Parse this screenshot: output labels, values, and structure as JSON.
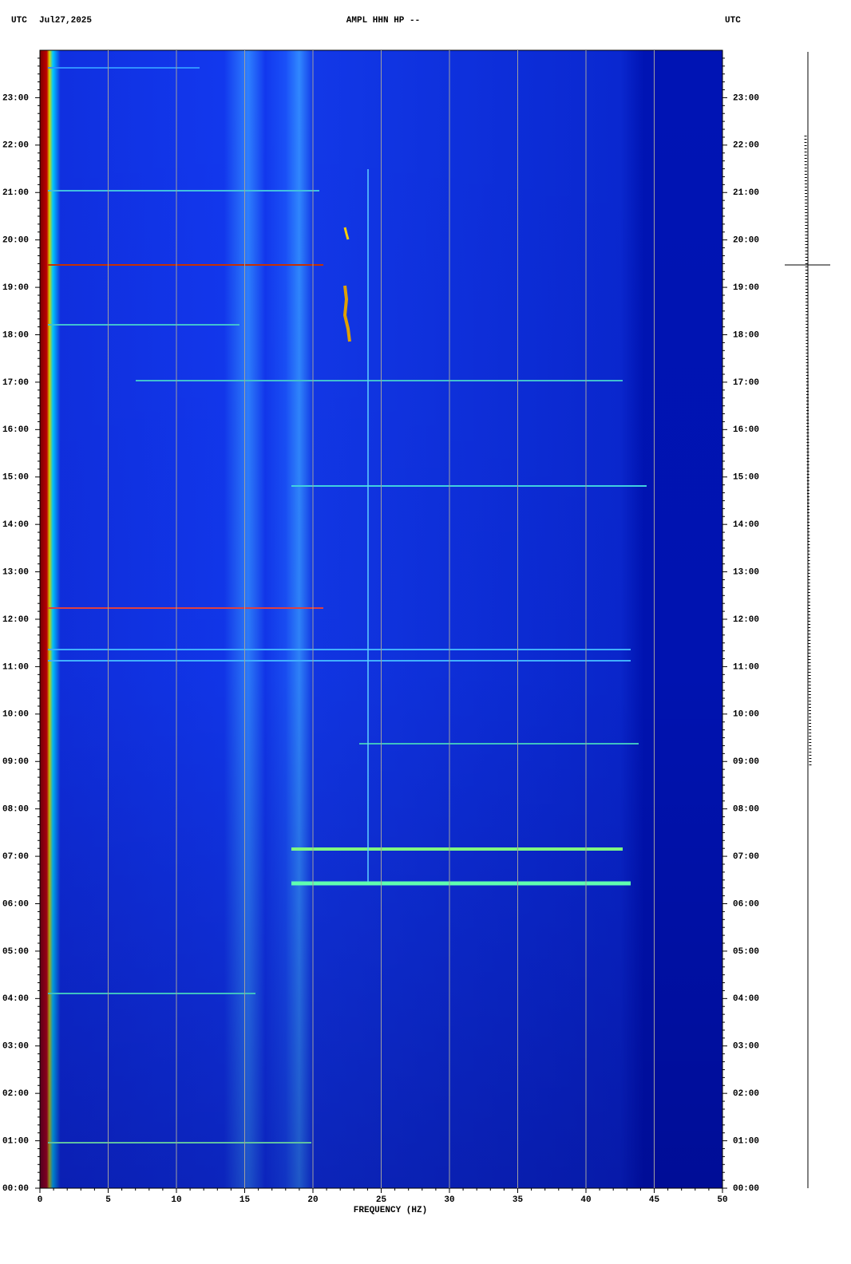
{
  "chart_data": {
    "type": "spectrogram",
    "timezone": "UTC",
    "date": "Jul27,2025",
    "title": "AMPL HHN HP --",
    "xlabel": "FREQUENCY (HZ)",
    "xlim": [
      0,
      50
    ],
    "xticks": [
      0,
      5,
      10,
      15,
      20,
      25,
      30,
      35,
      40,
      45,
      50
    ],
    "ylim": [
      0,
      24
    ],
    "yticks": [
      {
        "value": 0,
        "label": "00:00"
      },
      {
        "value": 1,
        "label": "01:00"
      },
      {
        "value": 2,
        "label": "02:00"
      },
      {
        "value": 3,
        "label": "03:00"
      },
      {
        "value": 4,
        "label": "04:00"
      },
      {
        "value": 5,
        "label": "05:00"
      },
      {
        "value": 6,
        "label": "06:00"
      },
      {
        "value": 7,
        "label": "07:00"
      },
      {
        "value": 8,
        "label": "08:00"
      },
      {
        "value": 9,
        "label": "09:00"
      },
      {
        "value": 10,
        "label": "10:00"
      },
      {
        "value": 11,
        "label": "11:00"
      },
      {
        "value": 12,
        "label": "12:00"
      },
      {
        "value": 13,
        "label": "13:00"
      },
      {
        "value": 14,
        "label": "14:00"
      },
      {
        "value": 15,
        "label": "15:00"
      },
      {
        "value": 16,
        "label": "16:00"
      },
      {
        "value": 17,
        "label": "17:00"
      },
      {
        "value": 18,
        "label": "18:00"
      },
      {
        "value": 19,
        "label": "19:00"
      },
      {
        "value": 20,
        "label": "20:00"
      },
      {
        "value": 21,
        "label": "21:00"
      },
      {
        "value": 22,
        "label": "22:00"
      },
      {
        "value": 23,
        "label": "23:00"
      }
    ],
    "grid": true
  }
}
